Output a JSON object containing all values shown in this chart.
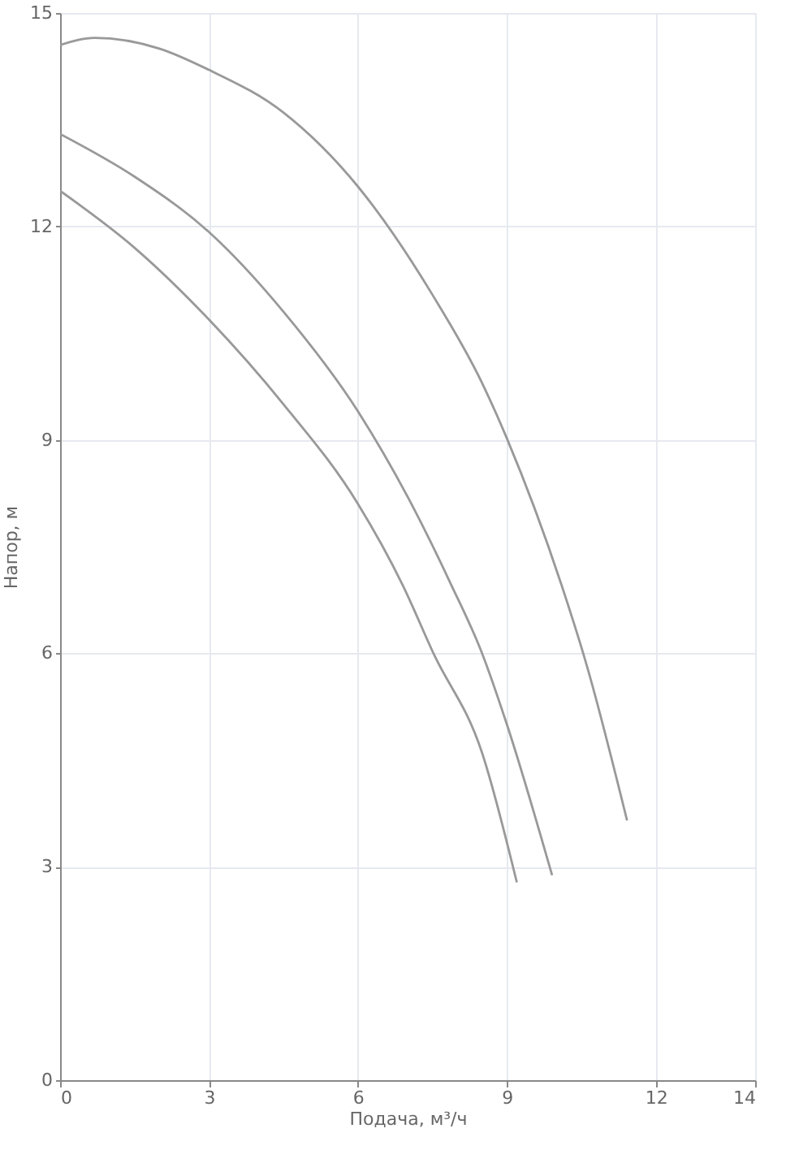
{
  "chart_data": {
    "type": "line",
    "xlabel": "Подача, м³/ч",
    "ylabel": "Напор, м",
    "xlim": [
      0,
      14
    ],
    "ylim": [
      0,
      15
    ],
    "xticks": [
      0,
      3,
      6,
      9,
      12,
      14
    ],
    "yticks": [
      0,
      3,
      6,
      9,
      12,
      15
    ],
    "grid": true,
    "marker": "none",
    "line_style": "solid",
    "series": [
      {
        "color": "#999999",
        "x": [
          0,
          0.7,
          2,
          3,
          4.5,
          6,
          7.5,
          8.5,
          9,
          10.1,
          10.6,
          11.42
        ],
        "values": [
          14.55,
          14.65,
          14.5,
          14.2,
          13.6,
          12.56,
          11.04,
          9.8,
          9.02,
          6.96,
          5.85,
          3.65
        ]
      },
      {
        "color": "#999999",
        "x": [
          0,
          1.5,
          3,
          4.5,
          6,
          7,
          7.88,
          8.5,
          9,
          9.91
        ],
        "values": [
          13.3,
          12.7,
          11.92,
          10.8,
          9.4,
          8.2,
          6.96,
          6,
          5,
          2.88
        ]
      },
      {
        "color": "#999999",
        "x": [
          0,
          1.5,
          3,
          4.5,
          6,
          6.9,
          7.52,
          8.5,
          9.2
        ],
        "values": [
          12.5,
          11.7,
          10.69,
          9.5,
          8.1,
          6.96,
          6,
          4.6,
          2.78
        ]
      }
    ]
  }
}
